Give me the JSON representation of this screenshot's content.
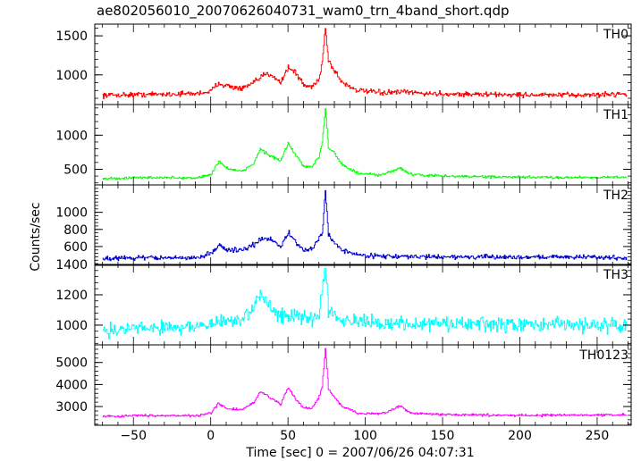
{
  "chart_data": {
    "type": "line",
    "title": "ae802056010_20070626040731_wam0_trn_4band_short.qdp",
    "xlabel": "Time [sec] 0 = 2007/06/26 04:07:31",
    "ylabel": "Counts/sec",
    "xlim": [
      -75,
      272
    ],
    "xticks": [
      -50,
      0,
      50,
      100,
      150,
      200,
      250
    ],
    "grid": false,
    "panels": [
      {
        "name": "TH0",
        "color": "#ff0000",
        "ylim": [
          620,
          1650
        ],
        "yticks": [
          1000,
          1500
        ],
        "baseline": 760,
        "noise": 28,
        "points": [
          [
            -70,
            740
          ],
          [
            -40,
            750
          ],
          [
            -10,
            760
          ],
          [
            0,
            790
          ],
          [
            5,
            900
          ],
          [
            10,
            860
          ],
          [
            20,
            820
          ],
          [
            28,
            900
          ],
          [
            35,
            1010
          ],
          [
            40,
            1000
          ],
          [
            45,
            900
          ],
          [
            50,
            1100
          ],
          [
            55,
            1020
          ],
          [
            60,
            870
          ],
          [
            65,
            840
          ],
          [
            70,
            960
          ],
          [
            72,
            1160
          ],
          [
            74,
            1620
          ],
          [
            76,
            1180
          ],
          [
            80,
            1050
          ],
          [
            85,
            900
          ],
          [
            95,
            800
          ],
          [
            110,
            770
          ],
          [
            125,
            780
          ],
          [
            140,
            760
          ],
          [
            170,
            750
          ],
          [
            200,
            745
          ],
          [
            230,
            740
          ],
          [
            250,
            745
          ],
          [
            268,
            760
          ]
        ]
      },
      {
        "name": "TH1",
        "color": "#00ff00",
        "ylim": [
          270,
          1450
        ],
        "yticks": [
          500,
          1000
        ],
        "baseline": 370,
        "noise": 16,
        "points": [
          [
            -70,
            360
          ],
          [
            -40,
            380
          ],
          [
            -10,
            370
          ],
          [
            0,
            420
          ],
          [
            5,
            620
          ],
          [
            10,
            520
          ],
          [
            20,
            460
          ],
          [
            28,
            600
          ],
          [
            32,
            800
          ],
          [
            38,
            700
          ],
          [
            45,
            620
          ],
          [
            50,
            880
          ],
          [
            55,
            700
          ],
          [
            60,
            540
          ],
          [
            65,
            520
          ],
          [
            70,
            700
          ],
          [
            72,
            900
          ],
          [
            74,
            1400
          ],
          [
            76,
            820
          ],
          [
            80,
            740
          ],
          [
            85,
            560
          ],
          [
            95,
            440
          ],
          [
            110,
            410
          ],
          [
            122,
            520
          ],
          [
            130,
            420
          ],
          [
            150,
            400
          ],
          [
            190,
            385
          ],
          [
            230,
            380
          ],
          [
            268,
            385
          ]
        ]
      },
      {
        "name": "TH2",
        "color": "#0000cc",
        "ylim": [
          380,
          1320
        ],
        "yticks": [
          600,
          800,
          1000
        ],
        "baseline": 470,
        "noise": 22,
        "points": [
          [
            -70,
            460
          ],
          [
            -40,
            470
          ],
          [
            -10,
            465
          ],
          [
            0,
            520
          ],
          [
            5,
            620
          ],
          [
            10,
            560
          ],
          [
            20,
            560
          ],
          [
            28,
            620
          ],
          [
            32,
            680
          ],
          [
            38,
            700
          ],
          [
            45,
            600
          ],
          [
            50,
            760
          ],
          [
            55,
            640
          ],
          [
            60,
            560
          ],
          [
            65,
            560
          ],
          [
            70,
            700
          ],
          [
            72,
            760
          ],
          [
            74,
            1240
          ],
          [
            76,
            740
          ],
          [
            80,
            640
          ],
          [
            85,
            560
          ],
          [
            95,
            500
          ],
          [
            110,
            490
          ],
          [
            125,
            480
          ],
          [
            150,
            480
          ],
          [
            190,
            475
          ],
          [
            230,
            480
          ],
          [
            268,
            470
          ]
        ]
      },
      {
        "name": "TH3",
        "color": "#00ffff",
        "ylim": [
          870,
          1400
        ],
        "yticks": [
          1000,
          1200,
          1400
        ],
        "baseline": 980,
        "noise": 40,
        "points": [
          [
            -70,
            960
          ],
          [
            -40,
            985
          ],
          [
            -10,
            990
          ],
          [
            0,
            1000
          ],
          [
            10,
            1030
          ],
          [
            20,
            1040
          ],
          [
            28,
            1100
          ],
          [
            32,
            1220
          ],
          [
            38,
            1120
          ],
          [
            45,
            1070
          ],
          [
            55,
            1050
          ],
          [
            65,
            1040
          ],
          [
            70,
            1080
          ],
          [
            74,
            1390
          ],
          [
            76,
            1110
          ],
          [
            85,
            1040
          ],
          [
            100,
            1010
          ],
          [
            130,
            1010
          ],
          [
            170,
            1005
          ],
          [
            200,
            1000
          ],
          [
            230,
            1005
          ],
          [
            268,
            1000
          ]
        ]
      },
      {
        "name": "TH0123",
        "color": "#ff00ff",
        "ylim": [
          2150,
          5800
        ],
        "yticks": [
          3000,
          4000,
          5000
        ],
        "baseline": 2560,
        "noise": 45,
        "points": [
          [
            -70,
            2550
          ],
          [
            -40,
            2600
          ],
          [
            -10,
            2580
          ],
          [
            0,
            2700
          ],
          [
            5,
            3150
          ],
          [
            10,
            2900
          ],
          [
            20,
            2850
          ],
          [
            28,
            3200
          ],
          [
            32,
            3700
          ],
          [
            38,
            3400
          ],
          [
            45,
            3100
          ],
          [
            50,
            3900
          ],
          [
            55,
            3300
          ],
          [
            60,
            2950
          ],
          [
            65,
            2900
          ],
          [
            70,
            3450
          ],
          [
            72,
            3900
          ],
          [
            74,
            5600
          ],
          [
            76,
            3800
          ],
          [
            80,
            3400
          ],
          [
            85,
            3000
          ],
          [
            95,
            2700
          ],
          [
            110,
            2650
          ],
          [
            122,
            3000
          ],
          [
            130,
            2700
          ],
          [
            150,
            2640
          ],
          [
            190,
            2600
          ],
          [
            230,
            2610
          ],
          [
            268,
            2620
          ]
        ]
      }
    ]
  }
}
